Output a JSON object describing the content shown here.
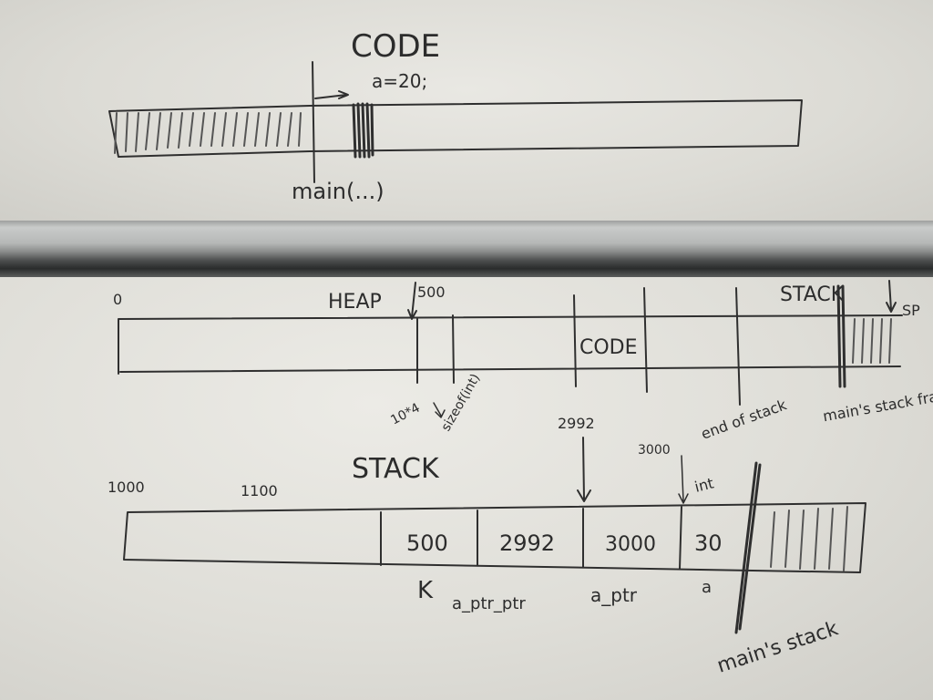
{
  "top": {
    "title": "CODE",
    "annotation": "a=20;",
    "main_label": "main(...)"
  },
  "memory": {
    "start": "0",
    "heap": "HEAP",
    "addr_500": "500",
    "code": "CODE",
    "stack": "STACK",
    "sp": "SP",
    "calc": "10*4",
    "sizeof": "sizeof(int)",
    "end_of_stack": "end of stack",
    "main_frame": "main's stack frame"
  },
  "stack": {
    "title": "STACK",
    "addr_1000": "1000",
    "addr_1100": "1100",
    "addr_2992": "2992",
    "addr_3000": "3000",
    "int_label": "int",
    "cells": [
      "500",
      "2992",
      "3000",
      "30"
    ],
    "labels": [
      "K",
      "a_ptr_ptr",
      "a_ptr",
      "a"
    ],
    "main_stack": "main's stack"
  },
  "ink_color": "#2f2f2f",
  "board_color": "#e4e3de"
}
